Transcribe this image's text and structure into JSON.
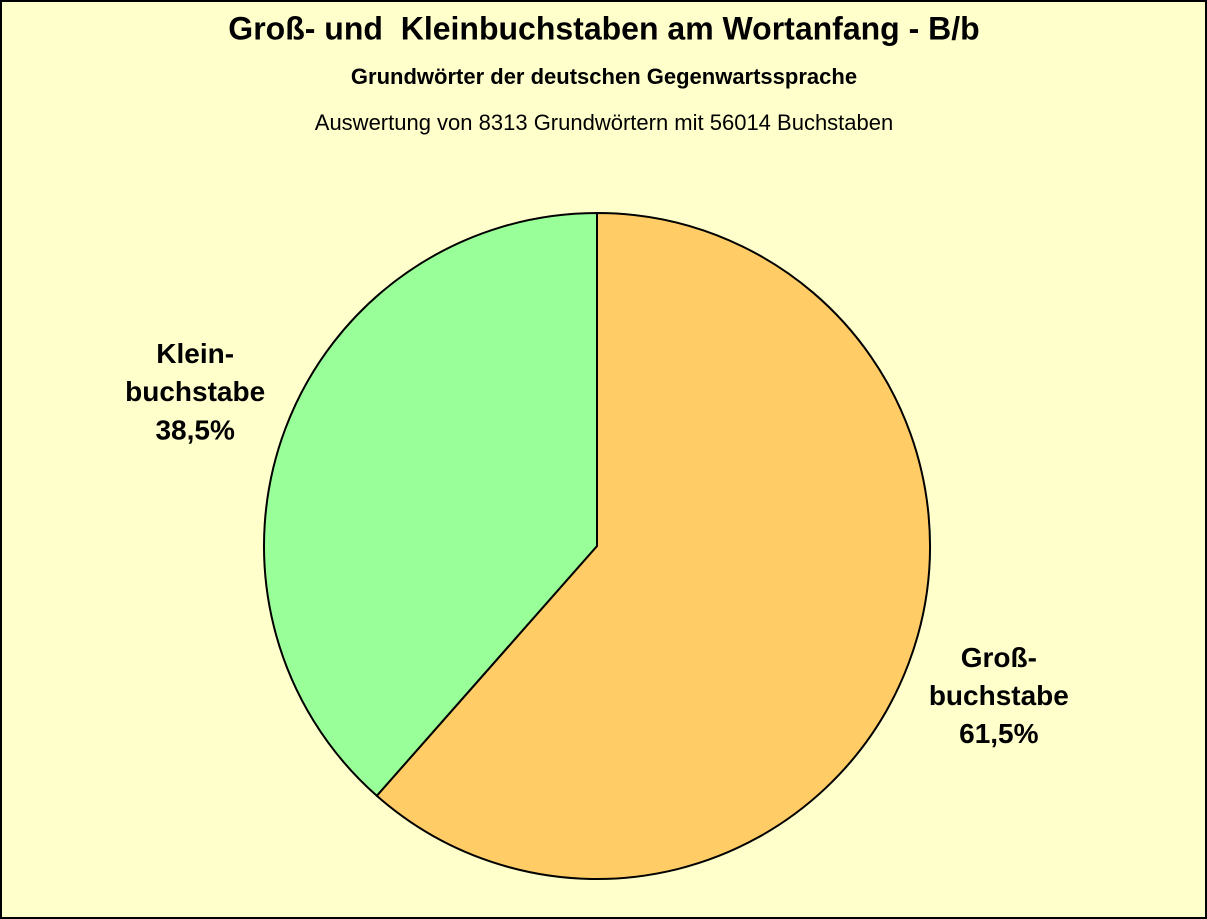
{
  "chart_data": {
    "type": "pie",
    "title": "Groß- und  Kleinbuchstaben am Wortanfang - B/b",
    "subtitle": "Grundwörter der deutschen Gegenwartssprache",
    "note": "Auswertung von 8313 Grundwörtern mit 56014 Buchstaben",
    "categories": [
      "Groß-\nbuchstabe",
      "Klein-\nbuchstabe"
    ],
    "values": [
      61.5,
      38.5
    ],
    "value_labels": [
      "61,5%",
      "38,5%"
    ],
    "colors": [
      "#FFCC66",
      "#99FF99"
    ]
  }
}
